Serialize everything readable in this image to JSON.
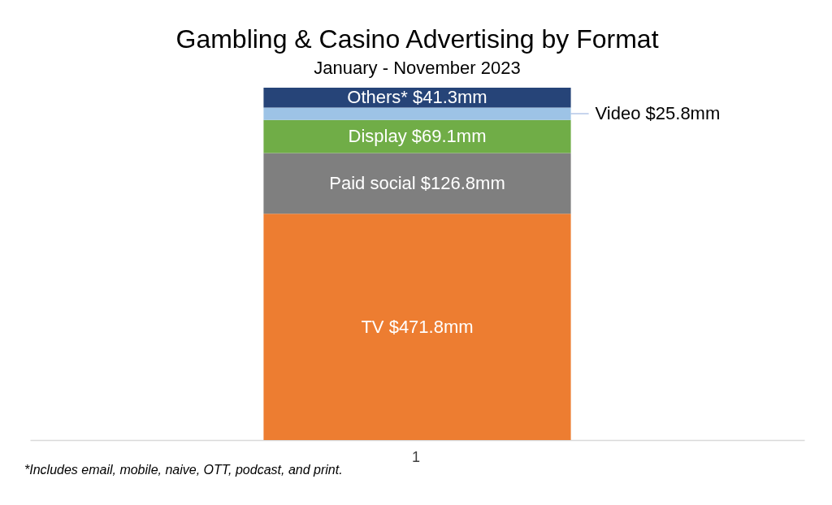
{
  "chart_data": {
    "type": "bar",
    "title": "Gambling & Casino Advertising by Format",
    "subtitle": "January - November 2023",
    "categories": [
      null
    ],
    "stacked": true,
    "series": [
      {
        "name": "TV",
        "color": "#ed7d31",
        "values": [
          471.8
        ],
        "value_labels": [
          "$471.8mm"
        ]
      },
      {
        "name": "Paid social",
        "color": "#7f7f7f",
        "values": [
          126.8
        ],
        "value_labels": [
          "$126.8mm"
        ]
      },
      {
        "name": "Display",
        "color": "#70ad47",
        "values": [
          69.1
        ],
        "value_labels": [
          "$69.1mm"
        ]
      },
      {
        "name": "Video",
        "color": "#9dc3e6",
        "values": [
          25.8
        ],
        "value_labels": [
          "$25.8mm"
        ]
      },
      {
        "name": "Others*",
        "color": "#264478",
        "values": [
          41.3
        ],
        "value_labels": [
          "$41.3mm"
        ]
      }
    ],
    "annotations": [
      {
        "text": "1"
      },
      "*Includes email, mobile, naive, OTT, podcast, and print."
    ]
  }
}
